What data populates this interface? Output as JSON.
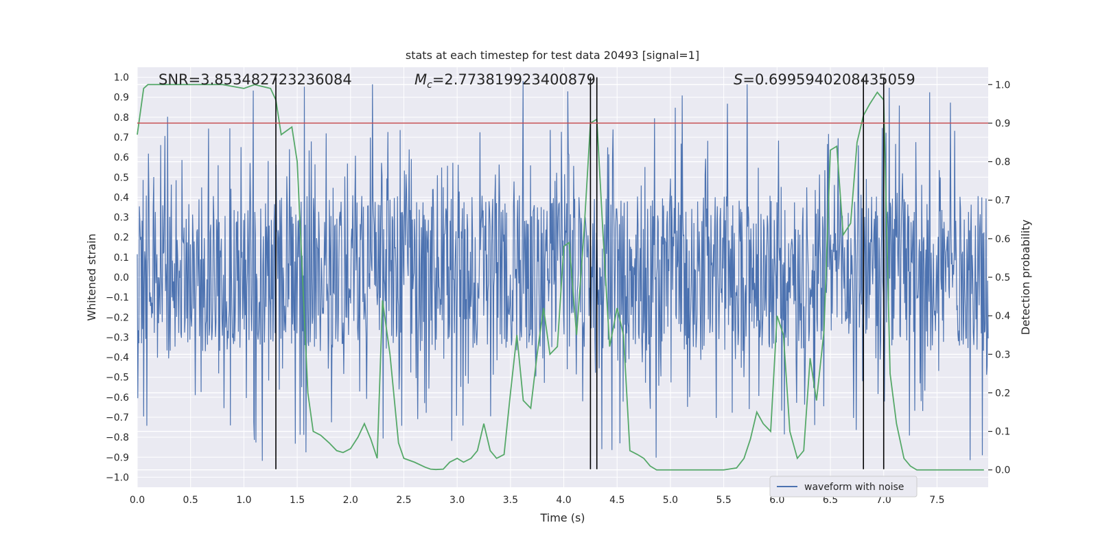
{
  "chart_data": {
    "type": "line",
    "title": "stats at each timestep for test data 20493 [signal=1]",
    "xlabel": "Time (s)",
    "ylabel": "Whitened strain",
    "y2label": "Detection probability",
    "xlim": [
      0.0,
      7.98
    ],
    "ylim": [
      -1.05,
      1.05
    ],
    "y2lim": [
      -0.045,
      1.045
    ],
    "x_ticks": [
      0.0,
      0.5,
      1.0,
      1.5,
      2.0,
      2.5,
      3.0,
      3.5,
      4.0,
      4.5,
      5.0,
      5.5,
      6.0,
      6.5,
      7.0,
      7.5
    ],
    "x_tick_labels": [
      "0.0",
      "0.5",
      "1.0",
      "1.5",
      "2.0",
      "2.5",
      "3.0",
      "3.5",
      "4.0",
      "4.5",
      "5.0",
      "5.5",
      "6.0",
      "6.5",
      "7.0",
      "7.5"
    ],
    "y_ticks": [
      1.0,
      0.9,
      0.8,
      0.7,
      0.6,
      0.5,
      0.4,
      0.3,
      0.2,
      0.1,
      0.0,
      -0.1,
      -0.2,
      -0.3,
      -0.4,
      -0.5,
      -0.6,
      -0.7,
      -0.8,
      -0.9,
      -1.0
    ],
    "y_tick_labels": [
      "1.0",
      "0.9",
      "0.8",
      "0.7",
      "0.6",
      "0.5",
      "0.4",
      "0.3",
      "0.2",
      "0.1",
      "0.0",
      "−0.1",
      "−0.2",
      "−0.3",
      "−0.4",
      "−0.5",
      "−0.6",
      "−0.7",
      "−0.8",
      "−0.9",
      "−1.0"
    ],
    "y2_ticks": [
      1.0,
      0.9,
      0.8,
      0.7,
      0.6,
      0.5,
      0.4,
      0.3,
      0.2,
      0.1,
      0.0
    ],
    "y2_tick_labels": [
      "1.0",
      "0.9",
      "0.8",
      "0.7",
      "0.6",
      "0.5",
      "0.4",
      "0.3",
      "0.2",
      "0.1",
      "0.0"
    ],
    "threshold": {
      "value": 0.9,
      "axis": "y2",
      "color": "#c44e52"
    },
    "vertical_lines": [
      1.3,
      4.25,
      4.31,
      6.81,
      7.0
    ],
    "vertical_line_range": [
      -0.96,
      1.0
    ],
    "annotations": {
      "snr": "SNR=3.853482723236084",
      "mc_symbol": "M",
      "mc_subscript": "c",
      "mc_value": "=2.773819923400879",
      "s_symbol": "S",
      "s_value": "=0.6995940208435059"
    },
    "series": [
      {
        "name": "waveform with noise",
        "color": "#4c72b0",
        "axis": "y",
        "kind": "noise",
        "n_samples": 1600,
        "band": [
          -0.37,
          0.41
        ],
        "max_excursion": [
          -0.94,
          0.99
        ]
      },
      {
        "name": "detection probability",
        "color": "#55a868",
        "axis": "y2",
        "x": [
          0.0,
          0.06,
          0.1,
          0.2,
          0.4,
          0.6,
          0.8,
          1.0,
          1.1,
          1.25,
          1.3,
          1.35,
          1.4,
          1.45,
          1.5,
          1.55,
          1.6,
          1.65,
          1.72,
          1.8,
          1.87,
          1.93,
          2.0,
          2.07,
          2.13,
          2.19,
          2.25,
          2.3,
          2.37,
          2.45,
          2.5,
          2.6,
          2.7,
          2.75,
          2.8,
          2.87,
          2.93,
          3.0,
          3.06,
          3.13,
          3.19,
          3.25,
          3.31,
          3.37,
          3.44,
          3.5,
          3.56,
          3.62,
          3.69,
          3.75,
          3.81,
          3.87,
          3.94,
          4.0,
          4.05,
          4.12,
          4.19,
          4.25,
          4.31,
          4.37,
          4.43,
          4.5,
          4.56,
          4.62,
          4.69,
          4.75,
          4.81,
          4.87,
          4.94,
          5.0,
          5.5,
          5.62,
          5.69,
          5.75,
          5.81,
          5.87,
          5.94,
          6.0,
          6.06,
          6.12,
          6.19,
          6.25,
          6.31,
          6.37,
          6.44,
          6.5,
          6.56,
          6.62,
          6.69,
          6.75,
          6.81,
          6.87,
          6.94,
          7.0,
          7.06,
          7.12,
          7.19,
          7.25,
          7.31,
          7.37,
          7.5,
          7.7,
          7.94
        ],
        "y": [
          0.87,
          0.99,
          1.0,
          1.0,
          1.0,
          1.0,
          1.0,
          0.99,
          1.0,
          0.99,
          0.96,
          0.87,
          0.88,
          0.89,
          0.8,
          0.5,
          0.2,
          0.1,
          0.09,
          0.07,
          0.05,
          0.045,
          0.055,
          0.085,
          0.12,
          0.08,
          0.03,
          0.44,
          0.3,
          0.07,
          0.03,
          0.02,
          0.007,
          0.002,
          0.001,
          0.002,
          0.02,
          0.03,
          0.02,
          0.03,
          0.05,
          0.12,
          0.05,
          0.03,
          0.04,
          0.2,
          0.35,
          0.18,
          0.16,
          0.3,
          0.42,
          0.3,
          0.32,
          0.58,
          0.59,
          0.35,
          0.62,
          0.9,
          0.91,
          0.6,
          0.32,
          0.42,
          0.35,
          0.05,
          0.04,
          0.03,
          0.01,
          0.0,
          0.0,
          0.0,
          0.0,
          0.005,
          0.03,
          0.08,
          0.15,
          0.12,
          0.1,
          0.4,
          0.35,
          0.1,
          0.03,
          0.05,
          0.29,
          0.18,
          0.36,
          0.83,
          0.84,
          0.61,
          0.64,
          0.85,
          0.92,
          0.95,
          0.98,
          0.96,
          0.25,
          0.12,
          0.03,
          0.01,
          0.0,
          0.0,
          0.0,
          0.0,
          0.0
        ]
      }
    ],
    "legend": {
      "position": "bottom-right",
      "entries": [
        "waveform with noise"
      ]
    },
    "grid": true
  }
}
